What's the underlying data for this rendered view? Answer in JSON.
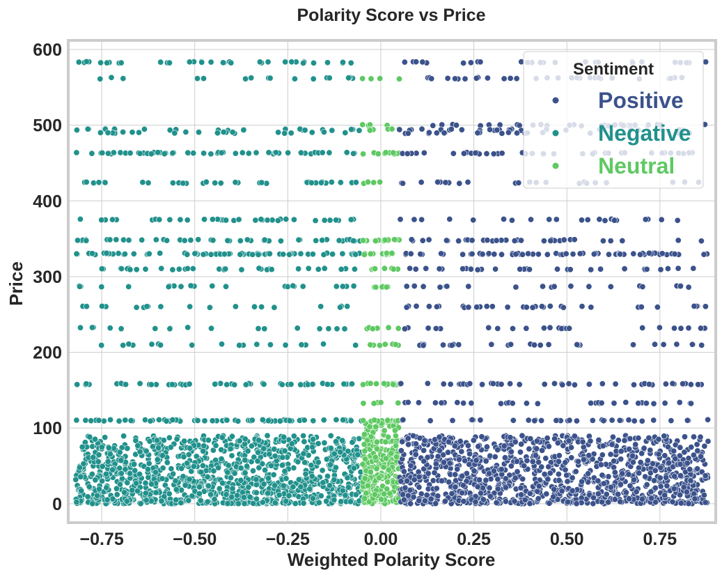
{
  "chart_data": {
    "type": "scatter",
    "title": "Polarity Score vs Price",
    "xlabel": "Weighted Polarity Score",
    "ylabel": "Price",
    "xlim": [
      -0.84,
      0.9
    ],
    "ylim": [
      -25,
      612
    ],
    "x_ticks": [
      -0.75,
      -0.5,
      -0.25,
      0.0,
      0.25,
      0.5,
      0.75
    ],
    "x_tick_labels": [
      "−0.75",
      "−0.50",
      "−0.25",
      "0.00",
      "0.25",
      "0.50",
      "0.75"
    ],
    "y_ticks": [
      0,
      100,
      200,
      300,
      400,
      500,
      600
    ],
    "y_tick_labels": [
      "0",
      "100",
      "200",
      "300",
      "400",
      "500",
      "600"
    ],
    "grid": true,
    "legend": {
      "title": "Sentiment",
      "placement": "top-right",
      "entries": [
        "Positive",
        "Negative",
        "Neutral"
      ]
    },
    "colors": {
      "Positive": "#3b528b",
      "Negative": "#21918c",
      "Neutral": "#5ec962",
      "grid": "#cccccc",
      "spine": "#cccccc",
      "text": "#262626"
    },
    "series": [
      {
        "name": "Positive",
        "x_range": [
          0.05,
          0.88
        ],
        "price_levels": [
          583,
          562,
          500,
          494,
          490,
          463,
          424,
          375,
          348,
          330,
          310,
          287,
          260,
          232,
          210,
          158,
          133,
          110
        ],
        "dense_band": [
          0,
          90
        ]
      },
      {
        "name": "Negative",
        "x_range": [
          -0.82,
          -0.05
        ],
        "price_levels": [
          583,
          562,
          494,
          490,
          463,
          424,
          375,
          348,
          330,
          310,
          287,
          260,
          232,
          210,
          158,
          110
        ],
        "dense_band": [
          0,
          90
        ]
      },
      {
        "name": "Neutral",
        "x_range": [
          -0.05,
          0.05
        ],
        "price_levels": [
          562,
          500,
          494,
          463,
          424,
          348,
          330,
          310,
          287,
          232,
          210,
          158,
          133,
          110
        ],
        "dense_band": [
          0,
          110
        ]
      }
    ]
  }
}
